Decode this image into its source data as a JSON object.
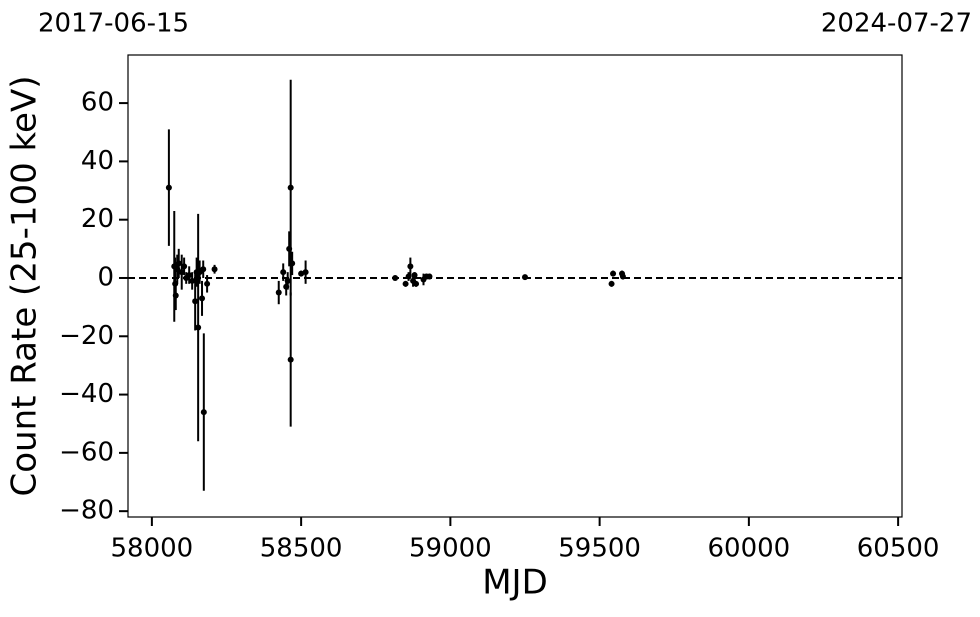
{
  "chart_data": {
    "type": "scatter",
    "xlabel": "MJD",
    "ylabel": "Count Rate (25-100 keV)",
    "annotations": [
      "2017-06-15",
      "2024-07-27"
    ],
    "x": [
      58057,
      58075,
      58078,
      58080,
      58085,
      58090,
      58100,
      58108,
      58115,
      58125,
      58135,
      58145,
      58150,
      58155,
      58160,
      58168,
      58172,
      58174,
      58185,
      58210,
      58425,
      58440,
      58450,
      58455,
      58460,
      58465,
      58465,
      58470,
      58500,
      58515,
      58815,
      58850,
      58860,
      58866,
      58875,
      58880,
      58885,
      58910,
      58920,
      58930,
      59250,
      59540,
      59545,
      59575,
      59578
    ],
    "values": [
      31,
      4,
      -2,
      -6,
      3,
      5,
      2,
      4,
      0,
      1,
      -1,
      -8,
      2,
      -17,
      2,
      -7,
      3,
      -46,
      -2,
      3,
      -5,
      2,
      -3,
      -1,
      10,
      31,
      -28,
      5,
      1.5,
      2,
      0,
      -2,
      0.5,
      4,
      -1,
      1,
      -2,
      -0.5,
      0.5,
      0.5,
      0.3,
      -2,
      1.5,
      1.5,
      0.5
    ],
    "errors": [
      20,
      19,
      9,
      5,
      5,
      5,
      6,
      3,
      2,
      3,
      3,
      10,
      5,
      39,
      4,
      6,
      3,
      27,
      3,
      1.5,
      4,
      3,
      3,
      3,
      6,
      37,
      23,
      4,
      1,
      4,
      0.8,
      1,
      1.5,
      3,
      2,
      1,
      1,
      2,
      1,
      1,
      0.5,
      1,
      1,
      1,
      1
    ],
    "color": "#000000",
    "hline": 0,
    "xlim": [
      57920,
      60513
    ],
    "ylim": [
      -82,
      76.5
    ],
    "xticks": [
      58000,
      58500,
      59000,
      59500,
      60000,
      60500
    ],
    "yticks": [
      {
        "value": -80,
        "label": "−80"
      },
      {
        "value": -60,
        "label": "−60"
      },
      {
        "value": -40,
        "label": "−40"
      },
      {
        "value": -20,
        "label": "−20"
      },
      0,
      20,
      40,
      60
    ]
  }
}
